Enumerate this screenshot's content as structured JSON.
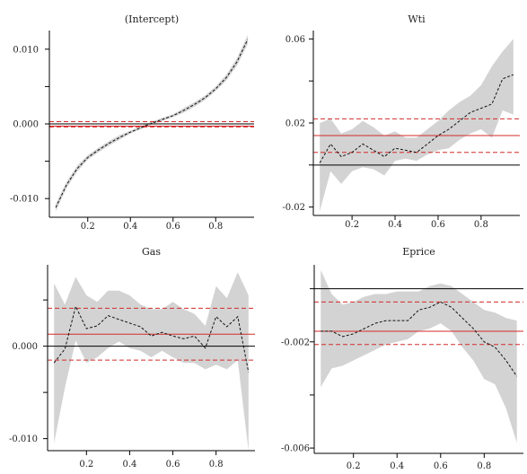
{
  "chart_data": [
    {
      "type": "line",
      "title": "(Intercept)",
      "xlim": [
        0.02,
        0.98
      ],
      "ylim": [
        -0.0125,
        0.0125
      ],
      "xticks": [
        0.2,
        0.4,
        0.6,
        0.8
      ],
      "xticklabels": [
        "0.2",
        "0.4",
        "0.6",
        "0.8"
      ],
      "yticks": [
        -0.01,
        0,
        0.01
      ],
      "yticklabels": [
        "-0.010",
        "0.000",
        "0.010"
      ],
      "yminor": [
        -0.005,
        0.005
      ],
      "x": [
        0.05,
        0.1,
        0.15,
        0.2,
        0.25,
        0.3,
        0.35,
        0.4,
        0.45,
        0.5,
        0.55,
        0.6,
        0.65,
        0.7,
        0.75,
        0.8,
        0.85,
        0.9,
        0.95
      ],
      "y": [
        -0.0112,
        -0.0082,
        -0.006,
        -0.0045,
        -0.0035,
        -0.0026,
        -0.0018,
        -0.0011,
        -0.0005,
        0.0001,
        0.0006,
        0.0011,
        0.0018,
        0.0026,
        0.0035,
        0.0047,
        0.0062,
        0.0083,
        0.0113
      ],
      "lower": [
        -0.0117,
        -0.0086,
        -0.0064,
        -0.0048,
        -0.0038,
        -0.0029,
        -0.0021,
        -0.0013,
        -0.0007,
        -0.0001,
        0.0004,
        0.0009,
        0.0015,
        0.0023,
        0.0032,
        0.0044,
        0.0058,
        0.0078,
        0.0107
      ],
      "upper": [
        -0.0107,
        -0.0078,
        -0.0056,
        -0.0042,
        -0.0032,
        -0.0023,
        -0.0015,
        -0.0009,
        -0.0003,
        0.0003,
        0.0008,
        0.0013,
        0.0021,
        0.0029,
        0.0038,
        0.005,
        0.0066,
        0.0088,
        0.0119
      ],
      "ols": -0.0003,
      "ols_lower": -0.0004,
      "ols_upper": 0.0003,
      "zero": 0
    },
    {
      "type": "line",
      "title": "Wti",
      "xlim": [
        0.02,
        0.98
      ],
      "ylim": [
        -0.024,
        0.064
      ],
      "xticks": [
        0.2,
        0.4,
        0.6,
        0.8
      ],
      "xticklabels": [
        "0.2",
        "0.4",
        "0.6",
        "0.8"
      ],
      "yticks": [
        -0.02,
        0.02,
        0.06
      ],
      "yticklabels": [
        "-0.02",
        "0.02",
        "0.06"
      ],
      "yminor": [
        0,
        0.04
      ],
      "x": [
        0.05,
        0.1,
        0.15,
        0.2,
        0.25,
        0.3,
        0.35,
        0.4,
        0.45,
        0.5,
        0.55,
        0.6,
        0.65,
        0.7,
        0.75,
        0.8,
        0.85,
        0.9,
        0.95
      ],
      "y": [
        0.001,
        0.01,
        0.004,
        0.006,
        0.01,
        0.007,
        0.004,
        0.008,
        0.007,
        0.006,
        0.01,
        0.014,
        0.017,
        0.021,
        0.025,
        0.027,
        0.029,
        0.041,
        0.043
      ],
      "lower": [
        -0.022,
        -0.003,
        -0.009,
        -0.003,
        -0.001,
        -0.002,
        -0.005,
        0.002,
        0.003,
        0.002,
        0.005,
        0.007,
        0.008,
        0.012,
        0.015,
        0.017,
        0.013,
        0.026,
        0.024
      ],
      "upper": [
        0.02,
        0.022,
        0.015,
        0.017,
        0.021,
        0.018,
        0.014,
        0.016,
        0.013,
        0.013,
        0.017,
        0.021,
        0.026,
        0.03,
        0.033,
        0.038,
        0.047,
        0.054,
        0.06
      ],
      "ols": 0.014,
      "ols_lower": 0.006,
      "ols_upper": 0.022,
      "zero": 0
    },
    {
      "type": "line",
      "title": "Gas",
      "xlim": [
        0.02,
        0.98
      ],
      "ylim": [
        -0.0113,
        0.0088
      ],
      "xticks": [
        0.2,
        0.4,
        0.6,
        0.8
      ],
      "xticklabels": [
        "0.2",
        "0.4",
        "0.6",
        "0.8"
      ],
      "yticks": [
        -0.01,
        0
      ],
      "yticklabels": [
        "-0.010",
        "0.000"
      ],
      "yminor": [
        -0.005,
        0.005
      ],
      "x": [
        0.05,
        0.1,
        0.15,
        0.2,
        0.25,
        0.3,
        0.35,
        0.4,
        0.45,
        0.5,
        0.55,
        0.6,
        0.65,
        0.7,
        0.75,
        0.8,
        0.85,
        0.9,
        0.95
      ],
      "y": [
        -0.0018,
        -0.0003,
        0.0043,
        0.0019,
        0.0022,
        0.0033,
        0.0029,
        0.0025,
        0.0021,
        0.0011,
        0.0015,
        0.0011,
        0.0008,
        0.0011,
        -0.0002,
        0.0032,
        0.0021,
        0.0032,
        -0.0028
      ],
      "lower": [
        -0.0105,
        -0.0045,
        0.0006,
        -0.0018,
        -0.0012,
        -0.0002,
        0.0005,
        -0.0002,
        -0.0005,
        -0.0012,
        -0.0005,
        -0.0012,
        -0.0018,
        -0.0018,
        -0.0025,
        -0.002,
        -0.0025,
        -0.0015,
        -0.0113
      ],
      "upper": [
        0.0068,
        0.0045,
        0.0075,
        0.0055,
        0.0048,
        0.006,
        0.006,
        0.0055,
        0.0045,
        0.004,
        0.004,
        0.0048,
        0.004,
        0.0035,
        0.0022,
        0.0065,
        0.0052,
        0.008,
        0.0055
      ],
      "ols": 0.0013,
      "ols_lower": -0.0015,
      "ols_upper": 0.0041,
      "zero": 0
    },
    {
      "type": "line",
      "title": "Eprice",
      "xlim": [
        0.02,
        0.98
      ],
      "ylim": [
        -0.0062,
        0.0009
      ],
      "xticks": [
        0.2,
        0.4,
        0.6,
        0.8
      ],
      "xticklabels": [
        "0.2",
        "0.4",
        "0.6",
        "0.8"
      ],
      "yticks": [
        -0.006,
        -0.002
      ],
      "yticklabels": [
        "-0.006",
        "-0.002"
      ],
      "yminor": [
        -0.004,
        0
      ],
      "x": [
        0.05,
        0.1,
        0.15,
        0.2,
        0.25,
        0.3,
        0.35,
        0.4,
        0.45,
        0.5,
        0.55,
        0.6,
        0.65,
        0.7,
        0.75,
        0.8,
        0.85,
        0.9,
        0.95
      ],
      "y": [
        -0.0016,
        -0.0016,
        -0.0018,
        -0.0017,
        -0.0015,
        -0.0013,
        -0.0012,
        -0.0012,
        -0.0012,
        -0.0008,
        -0.0007,
        -0.0005,
        -0.0007,
        -0.0011,
        -0.0015,
        -0.002,
        -0.0022,
        -0.0027,
        -0.0033
      ],
      "lower": [
        -0.0037,
        -0.003,
        -0.0029,
        -0.0027,
        -0.0025,
        -0.0023,
        -0.0021,
        -0.002,
        -0.0019,
        -0.0016,
        -0.0015,
        -0.0013,
        -0.0016,
        -0.0022,
        -0.0027,
        -0.0034,
        -0.0036,
        -0.0045,
        -0.0058
      ],
      "upper": [
        0.0007,
        -0.0002,
        -0.0006,
        -0.0005,
        -0.0003,
        -0.0002,
        -0.0002,
        -0.0001,
        -0.0001,
        -0.0001,
        0.0001,
        0.0002,
        0.0001,
        -0.0002,
        -0.0005,
        -0.0008,
        -0.0009,
        -0.0011,
        -0.0012
      ],
      "ols": -0.0016,
      "ols_lower": -0.0021,
      "ols_upper": -0.0005,
      "zero": 0
    }
  ]
}
